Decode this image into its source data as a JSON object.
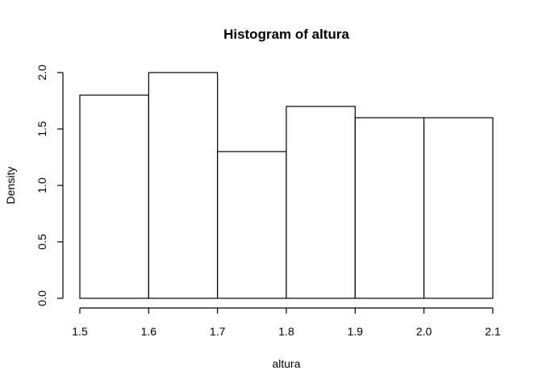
{
  "chart_data": {
    "type": "bar",
    "title": "Histogram of altura",
    "xlabel": "altura",
    "ylabel": "Density",
    "bins": [
      {
        "from": 1.5,
        "to": 1.6,
        "density": 1.8
      },
      {
        "from": 1.6,
        "to": 1.7,
        "density": 2.0
      },
      {
        "from": 1.7,
        "to": 1.8,
        "density": 1.3
      },
      {
        "from": 1.8,
        "to": 1.9,
        "density": 1.7
      },
      {
        "from": 1.9,
        "to": 2.0,
        "density": 1.6
      },
      {
        "from": 2.0,
        "to": 2.1,
        "density": 1.6
      }
    ],
    "xticks": [
      "1.5",
      "1.6",
      "1.7",
      "1.8",
      "1.9",
      "2.0",
      "2.1"
    ],
    "yticks": [
      "0.0",
      "0.5",
      "1.0",
      "1.5",
      "2.0"
    ],
    "xlim": [
      1.5,
      2.1
    ],
    "ylim": [
      0,
      2.0
    ],
    "grid": false,
    "legend": "none"
  }
}
